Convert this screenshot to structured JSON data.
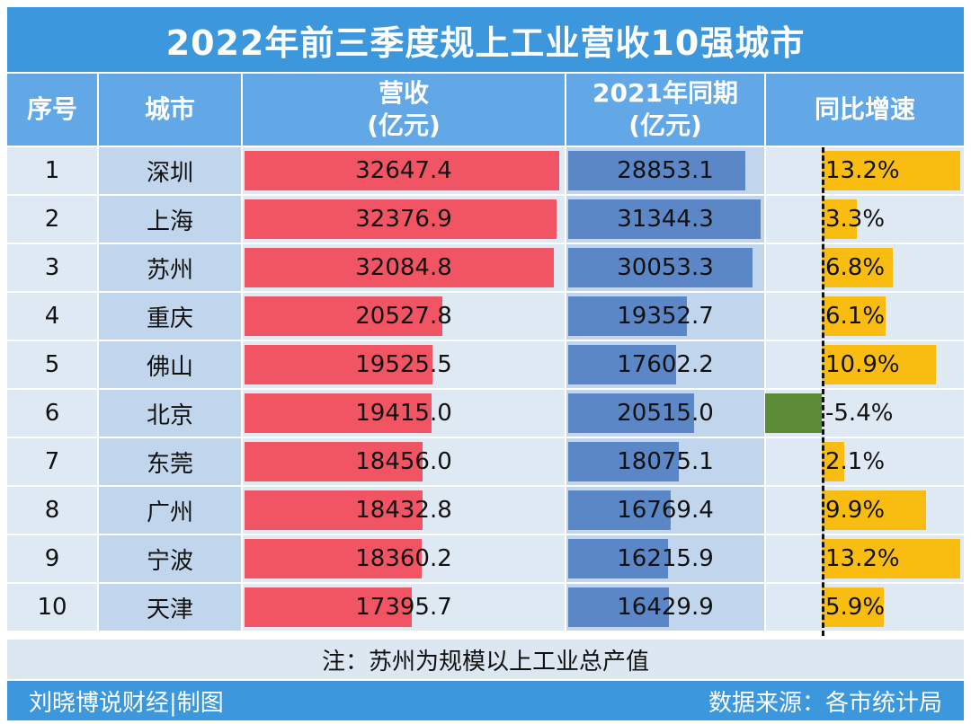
{
  "title": "2022年前三季度规上工业营收10强城市",
  "headers": {
    "rank": "序号",
    "city": "城市",
    "revenue_line1": "营收",
    "revenue_line2": "(亿元)",
    "last_year_line1": "2021年同期",
    "last_year_line2": "(亿元)",
    "growth": "同比增速"
  },
  "note": "注：苏州为规模以上工业总产值",
  "footer": {
    "left": "刘晓博说财经|制图",
    "right": "数据来源：各市统计局"
  },
  "colors": {
    "title_bg": "#3d97dc",
    "header_bg": "#62a8e6",
    "row_light": "#dfe9f4",
    "row_dark": "#c1d6ec",
    "revenue_bar": "#f15462",
    "last_year_bar": "#5c87c7",
    "growth_positive": "#f9bd12",
    "growth_negative": "#5b8b35"
  },
  "chart_data": {
    "type": "table",
    "columns": [
      "序号",
      "城市",
      "营收(亿元)",
      "2021年同期(亿元)",
      "同比增速"
    ],
    "rows": [
      {
        "rank": "1",
        "city": "深圳",
        "revenue": 32647.4,
        "revenue_label": "32647.4",
        "last_year": 28853.1,
        "last_year_label": "28853.1",
        "growth": 13.2,
        "growth_label": "13.2%"
      },
      {
        "rank": "2",
        "city": "上海",
        "revenue": 32376.9,
        "revenue_label": "32376.9",
        "last_year": 31344.3,
        "last_year_label": "31344.3",
        "growth": 3.3,
        "growth_label": "3.3%"
      },
      {
        "rank": "3",
        "city": "苏州",
        "revenue": 32084.8,
        "revenue_label": "32084.8",
        "last_year": 30053.3,
        "last_year_label": "30053.3",
        "growth": 6.8,
        "growth_label": "6.8%"
      },
      {
        "rank": "4",
        "city": "重庆",
        "revenue": 20527.8,
        "revenue_label": "20527.8",
        "last_year": 19352.7,
        "last_year_label": "19352.7",
        "growth": 6.1,
        "growth_label": "6.1%"
      },
      {
        "rank": "5",
        "city": "佛山",
        "revenue": 19525.5,
        "revenue_label": "19525.5",
        "last_year": 17602.2,
        "last_year_label": "17602.2",
        "growth": 10.9,
        "growth_label": "10.9%"
      },
      {
        "rank": "6",
        "city": "北京",
        "revenue": 19415.0,
        "revenue_label": "19415.0",
        "last_year": 20515.0,
        "last_year_label": "20515.0",
        "growth": -5.4,
        "growth_label": "-5.4%"
      },
      {
        "rank": "7",
        "city": "东莞",
        "revenue": 18456.0,
        "revenue_label": "18456.0",
        "last_year": 18075.1,
        "last_year_label": "18075.1",
        "growth": 2.1,
        "growth_label": "2.1%"
      },
      {
        "rank": "8",
        "city": "广州",
        "revenue": 18432.8,
        "revenue_label": "18432.8",
        "last_year": 16769.4,
        "last_year_label": "16769.4",
        "growth": 9.9,
        "growth_label": "9.9%"
      },
      {
        "rank": "9",
        "city": "宁波",
        "revenue": 18360.2,
        "revenue_label": "18360.2",
        "last_year": 16215.9,
        "last_year_label": "16215.9",
        "growth": 13.2,
        "growth_label": "13.2%"
      },
      {
        "rank": "10",
        "city": "天津",
        "revenue": 17395.7,
        "revenue_label": "17395.7",
        "last_year": 16429.9,
        "last_year_label": "16429.9",
        "growth": 5.9,
        "growth_label": "5.9%"
      }
    ]
  }
}
